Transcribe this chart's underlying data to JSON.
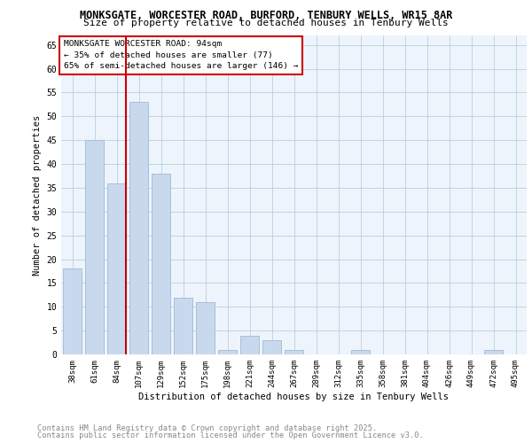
{
  "title1": "MONKSGATE, WORCESTER ROAD, BURFORD, TENBURY WELLS, WR15 8AR",
  "title2": "Size of property relative to detached houses in Tenbury Wells",
  "xlabel": "Distribution of detached houses by size in Tenbury Wells",
  "ylabel": "Number of detached properties",
  "categories": [
    "38sqm",
    "61sqm",
    "84sqm",
    "107sqm",
    "129sqm",
    "152sqm",
    "175sqm",
    "198sqm",
    "221sqm",
    "244sqm",
    "267sqm",
    "289sqm",
    "312sqm",
    "335sqm",
    "358sqm",
    "381sqm",
    "404sqm",
    "426sqm",
    "449sqm",
    "472sqm",
    "495sqm"
  ],
  "values": [
    18,
    45,
    36,
    53,
    38,
    12,
    11,
    1,
    4,
    3,
    1,
    0,
    0,
    1,
    0,
    0,
    0,
    0,
    0,
    1,
    0
  ],
  "bar_color": "#c9d9ed",
  "bar_edge_color": "#a0b8d8",
  "grid_color": "#b8cfe0",
  "bg_color": "#eef4fb",
  "vline_color": "#cc0000",
  "vline_pos": 2.425,
  "annotation_text": "MONKSGATE WORCESTER ROAD: 94sqm\n← 35% of detached houses are smaller (77)\n65% of semi-detached houses are larger (146) →",
  "annotation_box_color": "#cc0000",
  "ylim": [
    0,
    67
  ],
  "yticks": [
    0,
    5,
    10,
    15,
    20,
    25,
    30,
    35,
    40,
    45,
    50,
    55,
    60,
    65
  ],
  "footer_line1": "Contains HM Land Registry data © Crown copyright and database right 2025.",
  "footer_line2": "Contains public sector information licensed under the Open Government Licence v3.0.",
  "footer_color": "#888888"
}
